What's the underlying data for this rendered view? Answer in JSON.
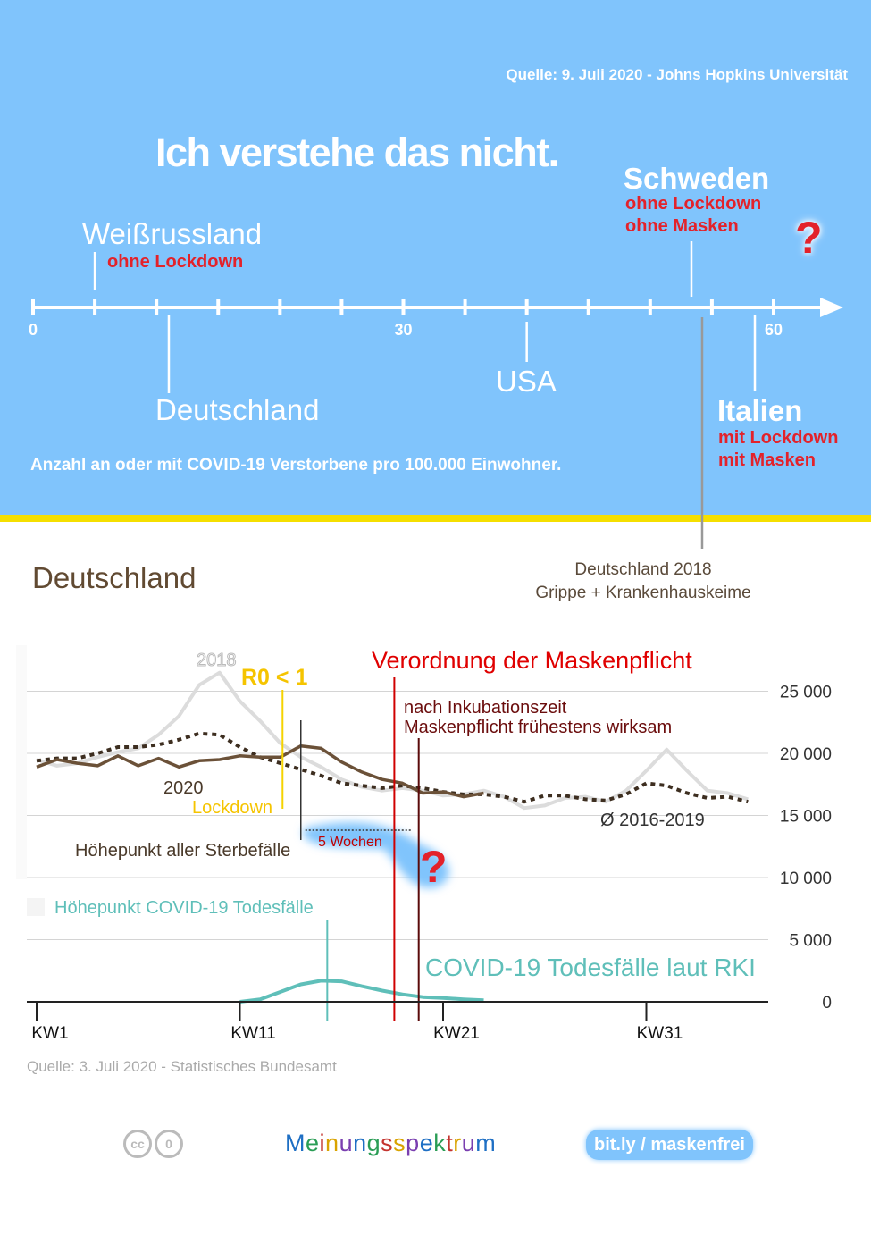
{
  "header": {
    "source": "Quelle: 9. Juli 2020 - Johns Hopkins Universität",
    "title": "Ich verstehe das nicht.",
    "axis_caption": "Anzahl an oder mit COVID-19 Verstorbene pro 100.000 Einwohner.",
    "question_mark": "?"
  },
  "number_line": {
    "max": 65,
    "ticks": [
      0,
      5,
      10,
      15,
      20,
      25,
      30,
      35,
      40,
      45,
      50,
      55,
      60
    ],
    "tick_labels": [
      "0",
      "30",
      "60"
    ],
    "countries": [
      {
        "name": "Weißrussland",
        "value": 5,
        "notes": [
          "ohne Lockdown"
        ]
      },
      {
        "name": "Deutschland",
        "value": 11,
        "notes": []
      },
      {
        "name": "USA",
        "value": 40,
        "notes": []
      },
      {
        "name": "Schweden",
        "value": 54,
        "notes": [
          "ohne Lockdown",
          "ohne Masken"
        ]
      },
      {
        "name": "Italien",
        "value": 58,
        "notes": [
          "mit Lockdown",
          "mit Masken"
        ]
      }
    ],
    "reference": {
      "value": 55,
      "label_line1": "Deutschland 2018",
      "label_line2": "Grippe + Krankenhauskeime"
    }
  },
  "section_title": "Deutschland",
  "chart_data": {
    "type": "line",
    "x_unit": "Kalenderwoche",
    "x_ticks": [
      "KW1",
      "KW11",
      "KW21",
      "KW31"
    ],
    "x_tick_weeks": [
      1,
      11,
      21,
      31
    ],
    "y_ticks": [
      "25 000",
      "20 000",
      "15 000",
      "10 000",
      "5 000",
      "0"
    ],
    "y_tick_values": [
      25000,
      20000,
      15000,
      10000,
      5000,
      0
    ],
    "ylim": [
      0,
      26500
    ],
    "xlim": [
      1,
      36.9
    ],
    "series": [
      {
        "name": "2018",
        "color": "#dcdcdc",
        "weeks": [
          1,
          2,
          3,
          4,
          5,
          6,
          7,
          8,
          9,
          10,
          11,
          12,
          13,
          14,
          15,
          16,
          17,
          18,
          19,
          20,
          21,
          22,
          23,
          24,
          25,
          26,
          27,
          28,
          29,
          30,
          31,
          32,
          33,
          34,
          35,
          36
        ],
        "values": [
          19500,
          19000,
          19200,
          19700,
          20100,
          20400,
          21500,
          23000,
          25500,
          26500,
          24200,
          22600,
          20800,
          19700,
          18900,
          17900,
          17300,
          17000,
          17200,
          17000,
          16600,
          16700,
          17000,
          16500,
          15600,
          15800,
          16400,
          16500,
          16100,
          17000,
          18600,
          20300,
          18600,
          17000,
          16800,
          16300
        ]
      },
      {
        "name": "2020",
        "color": "#6b5138",
        "weeks": [
          1,
          2,
          3,
          4,
          5,
          6,
          7,
          8,
          9,
          10,
          11,
          12,
          13,
          14,
          15,
          16,
          17,
          18,
          19,
          20,
          21,
          22,
          23
        ],
        "values": [
          18900,
          19500,
          19200,
          19000,
          19800,
          19000,
          19600,
          18900,
          19400,
          19500,
          19800,
          19700,
          19700,
          20600,
          20400,
          19300,
          18500,
          17900,
          17600,
          16800,
          16900,
          16500,
          16800
        ]
      },
      {
        "name": "Ø 2016-2019",
        "color": "#3d2e20",
        "weeks": [
          1,
          2,
          3,
          4,
          5,
          6,
          7,
          8,
          9,
          10,
          11,
          12,
          13,
          14,
          15,
          16,
          17,
          18,
          19,
          20,
          21,
          22,
          23,
          24,
          25,
          26,
          27,
          28,
          29,
          30,
          31,
          32,
          33,
          34,
          35,
          36
        ],
        "values": [
          19400,
          19600,
          19600,
          20000,
          20500,
          20500,
          20700,
          21100,
          21600,
          21500,
          20500,
          19700,
          19200,
          18700,
          18200,
          17600,
          17400,
          17200,
          17400,
          17200,
          16900,
          16700,
          16700,
          16500,
          16100,
          16600,
          16600,
          16300,
          16200,
          16700,
          17600,
          17400,
          16800,
          16400,
          16500,
          16100
        ]
      },
      {
        "name": "COVID-19 Todesfälle laut RKI",
        "color": "#5fbfb9",
        "weeks": [
          11,
          12,
          13,
          14,
          15,
          16,
          17,
          18,
          19,
          20,
          21,
          22,
          23
        ],
        "values": [
          0,
          200,
          800,
          1400,
          1700,
          1650,
          1250,
          900,
          600,
          380,
          300,
          200,
          120
        ]
      }
    ],
    "annotations": {
      "label_2018": "2018",
      "label_2020": "2020",
      "avg_label": "Ø 2016-2019",
      "r0": "R0 < 1",
      "lockdown": "Lockdown",
      "mask_order": "Verordnung der Maskenpflicht",
      "incubation_line1": "nach Inkubationszeit",
      "incubation_line2": "Maskenpflicht frühestens wirksam",
      "peak_all": "Höhepunkt aller Sterbefälle",
      "peak_covid": "Höhepunkt COVID-19 Todesfälle",
      "five_weeks": "5 Wochen",
      "covid_label": "COVID-19 Todesfälle laut RKI",
      "question_mark": "?"
    },
    "marker_weeks": {
      "lockdown": 13.1,
      "peak_all": 14.0,
      "peak_covid": 15.3,
      "mask_order": 18.6,
      "incubation": 19.8
    }
  },
  "footer": {
    "source": "Quelle: 3. Juli 2020 - Statistisches Bundesamt",
    "brand": "Meinungsspektrum",
    "brand_colors": [
      "#1e6fc4",
      "#2a9d55",
      "#c4342f",
      "#d9a300",
      "#7a3fb0"
    ],
    "link": "bit.ly / maskenfrei",
    "license_icons": [
      "cc",
      "0"
    ]
  },
  "colors": {
    "sky": "#80c4fc",
    "stripe": "#f5df00",
    "red": "#e3222a",
    "dark_red": "#6b0d0d",
    "brown": "#614a32"
  }
}
